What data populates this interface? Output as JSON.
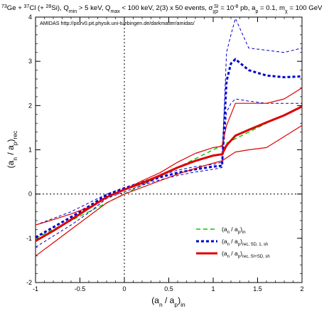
{
  "chart_data": {
    "type": "line",
    "title": {
      "iso1_sup": "73",
      "iso1": "Ge + ",
      "iso2_sup": "37",
      "iso2": "Cl (+ ",
      "iso3_sup": "28",
      "iso3": "Si), Q",
      "qmin_sub": "min",
      "qmin_val": " > 5 keV, Q",
      "qmax_sub": "max",
      "qmax_val": " < 100 keV, 2(3) x 50 events, σ",
      "sigma_sub": "χp",
      "sigma_sup": "SI",
      "sigma_val": " = 10",
      "sigma_exp": "-8",
      "sigma_unit": " pb, a",
      "ap_sub": "p",
      "ap_val": " = 0.1, m",
      "mchi_sub": "χ",
      "mchi_val": " = 100 GeV"
    },
    "annotation": "AMIDAS   http://pisrv0.pit.physik.uni-tuebingen.de/darkmatter/amidas/",
    "xlabel": {
      "open": "(a",
      "n": "n",
      "slash": " / a",
      "p": "p",
      "close": ")",
      "sub": "in"
    },
    "ylabel": {
      "open": "(a",
      "n": "n",
      "slash": " / a",
      "p": "p",
      "close": ")",
      "sub": "rec"
    },
    "xlim": [
      -1,
      2
    ],
    "ylim": [
      -2,
      4
    ],
    "x_ticks": [
      -1,
      -0.5,
      0,
      0.5,
      1,
      1.5,
      2
    ],
    "x_tick_labels": [
      "-1",
      "-0.5",
      "0",
      "0.5",
      "1",
      "1.5",
      "2"
    ],
    "y_ticks": [
      -2,
      -1,
      0,
      1,
      2,
      3,
      4
    ],
    "y_tick_labels": [
      "-2",
      "-1",
      "0",
      "1",
      "2",
      "3",
      "4"
    ],
    "reference_lines": {
      "x": 0,
      "y": 0
    },
    "legend": {
      "position": "bottom-right",
      "entries": [
        {
          "main": "(a",
          "n": "n",
          "slash": " / a",
          "p": "p",
          "close": ")",
          "sub": "in",
          "color": "#00cc00",
          "style": "dashed",
          "weight": "thin"
        },
        {
          "main": "(a",
          "n": "n",
          "slash": " / a",
          "p": "p",
          "close": ")",
          "sub": "rec, SD, 1, sh",
          "color": "#0000cc",
          "style": "dashed",
          "weight": "thick"
        },
        {
          "main": "(a",
          "n": "n",
          "slash": " / a",
          "p": "p",
          "close": ")",
          "sub": "rec, SI+SD, sh",
          "color": "#dd0000",
          "style": "solid",
          "weight": "thick"
        }
      ]
    },
    "series": [
      {
        "role": "green",
        "color": "#00cc00",
        "dash": "6,4",
        "width": 1.4,
        "points": [
          [
            -1,
            -1.0
          ],
          [
            -0.5,
            -0.5
          ],
          [
            0,
            0.0
          ],
          [
            0.5,
            0.5
          ],
          [
            1.0,
            1.0
          ],
          [
            1.5,
            1.5
          ],
          [
            1.6,
            1.6
          ]
        ]
      },
      {
        "role": "blue-thick",
        "color": "#0000cc",
        "dash": "4,3",
        "width": 3,
        "points": [
          [
            -1,
            -0.98
          ],
          [
            -0.8,
            -0.75
          ],
          [
            -0.6,
            -0.52
          ],
          [
            -0.4,
            -0.28
          ],
          [
            -0.2,
            -0.02
          ],
          [
            0,
            0.12
          ],
          [
            0.2,
            0.24
          ],
          [
            0.4,
            0.38
          ],
          [
            0.6,
            0.48
          ],
          [
            0.8,
            0.56
          ],
          [
            1.0,
            0.62
          ],
          [
            1.1,
            0.64
          ],
          [
            1.15,
            2.55
          ],
          [
            1.2,
            2.95
          ],
          [
            1.25,
            3.05
          ],
          [
            1.4,
            2.8
          ],
          [
            1.6,
            2.68
          ],
          [
            1.8,
            2.64
          ],
          [
            2.0,
            2.66
          ]
        ]
      },
      {
        "role": "blue-thin-upper",
        "color": "#0000cc",
        "dash": "4,3",
        "width": 1,
        "points": [
          [
            -1,
            -0.7
          ],
          [
            -0.8,
            -0.55
          ],
          [
            -0.6,
            -0.4
          ],
          [
            -0.4,
            -0.2
          ],
          [
            -0.2,
            0.0
          ],
          [
            0,
            0.15
          ],
          [
            0.2,
            0.28
          ],
          [
            0.4,
            0.42
          ],
          [
            0.6,
            0.54
          ],
          [
            0.8,
            0.62
          ],
          [
            1.0,
            0.67
          ],
          [
            1.1,
            0.72
          ],
          [
            1.15,
            3.2
          ],
          [
            1.2,
            3.6
          ],
          [
            1.25,
            3.97
          ],
          [
            1.4,
            3.3
          ],
          [
            1.6,
            3.25
          ],
          [
            1.8,
            3.2
          ],
          [
            2.0,
            3.3
          ]
        ]
      },
      {
        "role": "blue-thin-lower",
        "color": "#0000cc",
        "dash": "4,3",
        "width": 1,
        "points": [
          [
            -1,
            -1.2
          ],
          [
            -0.8,
            -0.95
          ],
          [
            -0.6,
            -0.7
          ],
          [
            -0.4,
            -0.42
          ],
          [
            -0.2,
            -0.1
          ],
          [
            0,
            0.05
          ],
          [
            0.2,
            0.2
          ],
          [
            0.4,
            0.32
          ],
          [
            0.6,
            0.42
          ],
          [
            0.8,
            0.5
          ],
          [
            1.0,
            0.56
          ],
          [
            1.1,
            0.6
          ],
          [
            1.15,
            1.85
          ],
          [
            1.2,
            2.05
          ],
          [
            1.25,
            2.15
          ],
          [
            1.4,
            2.1
          ],
          [
            1.6,
            2.05
          ],
          [
            1.8,
            2.05
          ],
          [
            2.0,
            2.05
          ]
        ]
      },
      {
        "role": "red-thick",
        "color": "#dd0000",
        "dash": "",
        "width": 3,
        "points": [
          [
            -1,
            -1.06
          ],
          [
            -0.8,
            -0.83
          ],
          [
            -0.6,
            -0.58
          ],
          [
            -0.4,
            -0.32
          ],
          [
            -0.2,
            -0.07
          ],
          [
            0,
            0.1
          ],
          [
            0.2,
            0.25
          ],
          [
            0.4,
            0.42
          ],
          [
            0.6,
            0.6
          ],
          [
            0.8,
            0.75
          ],
          [
            1.0,
            0.87
          ],
          [
            1.1,
            0.9
          ],
          [
            1.15,
            1.1
          ],
          [
            1.25,
            1.32
          ],
          [
            1.4,
            1.45
          ],
          [
            1.6,
            1.62
          ],
          [
            1.8,
            1.78
          ],
          [
            2.0,
            1.98
          ]
        ]
      },
      {
        "role": "red-thin-upper",
        "color": "#dd0000",
        "dash": "",
        "width": 1.2,
        "points": [
          [
            -1,
            -0.7
          ],
          [
            -0.8,
            -0.58
          ],
          [
            -0.6,
            -0.45
          ],
          [
            -0.4,
            -0.3
          ],
          [
            -0.2,
            -0.08
          ],
          [
            0,
            0.1
          ],
          [
            0.2,
            0.3
          ],
          [
            0.4,
            0.48
          ],
          [
            0.6,
            0.72
          ],
          [
            0.8,
            0.92
          ],
          [
            1.0,
            1.05
          ],
          [
            1.1,
            1.08
          ],
          [
            1.15,
            1.55
          ],
          [
            1.25,
            2.05
          ],
          [
            1.4,
            2.05
          ],
          [
            1.6,
            2.05
          ],
          [
            1.8,
            2.15
          ],
          [
            2.0,
            2.4
          ]
        ]
      },
      {
        "role": "red-thin-lower",
        "color": "#dd0000",
        "dash": "",
        "width": 1.2,
        "points": [
          [
            -1,
            -1.4
          ],
          [
            -0.8,
            -1.1
          ],
          [
            -0.6,
            -0.8
          ],
          [
            -0.4,
            -0.5
          ],
          [
            -0.2,
            -0.2
          ],
          [
            0,
            0.0
          ],
          [
            0.2,
            0.15
          ],
          [
            0.4,
            0.3
          ],
          [
            0.6,
            0.45
          ],
          [
            0.8,
            0.58
          ],
          [
            1.0,
            0.7
          ],
          [
            1.1,
            0.75
          ],
          [
            1.15,
            0.82
          ],
          [
            1.25,
            0.95
          ],
          [
            1.4,
            1.0
          ],
          [
            1.6,
            1.05
          ],
          [
            1.8,
            1.3
          ],
          [
            2.0,
            1.55
          ]
        ]
      }
    ]
  }
}
